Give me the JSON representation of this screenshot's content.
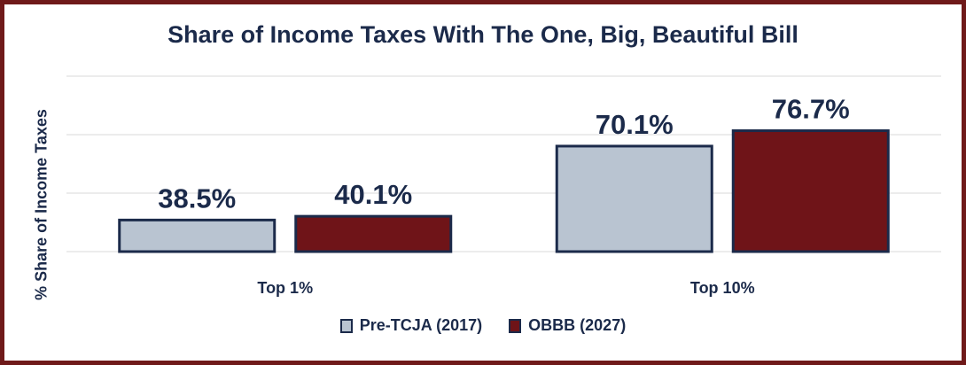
{
  "chart_data": {
    "type": "bar",
    "title": "Share of Income Taxes With The One, Big, Beautiful Bill",
    "ylabel": "% Share of Income Taxes",
    "xlabel": "",
    "categories": [
      "Top 1%",
      "Top 10%"
    ],
    "series": [
      {
        "name": "Pre-TCJA (2017)",
        "values": [
          38.5,
          70.1
        ],
        "labels": [
          "38.5%",
          "70.1%"
        ],
        "color": "#b9c4d1"
      },
      {
        "name": "OBBB (2027)",
        "values": [
          40.1,
          76.7
        ],
        "labels": [
          "40.1%",
          "76.7%"
        ],
        "color": "#6f1418"
      }
    ],
    "ylim": [
      25,
      100
    ],
    "grid": true,
    "legend": "bottom-center",
    "bar_outline_color": "#1b2a4a",
    "frame_color": "#6f1a1a"
  }
}
